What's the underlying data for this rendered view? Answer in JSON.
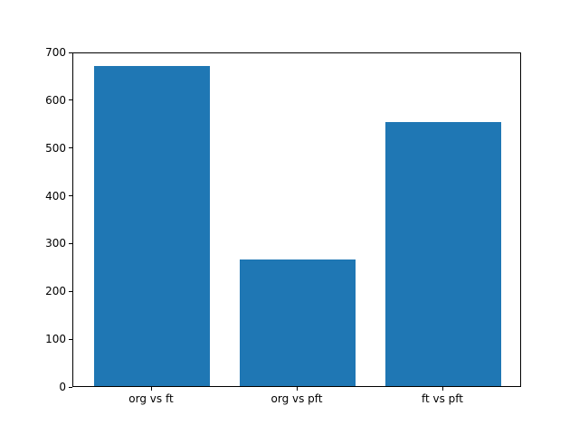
{
  "chart_data": {
    "type": "bar",
    "categories": [
      "org vs ft",
      "org vs pft",
      "ft vs pft"
    ],
    "values": [
      670,
      265,
      553
    ],
    "title": "",
    "xlabel": "",
    "ylabel": "",
    "ylim": [
      0,
      700
    ],
    "yticks": [
      0,
      100,
      200,
      300,
      400,
      500,
      600,
      700
    ],
    "bar_color": "#1f77b4",
    "background_color": "#ffffff",
    "spine_color": "#000000",
    "grid": false,
    "legend": null
  }
}
